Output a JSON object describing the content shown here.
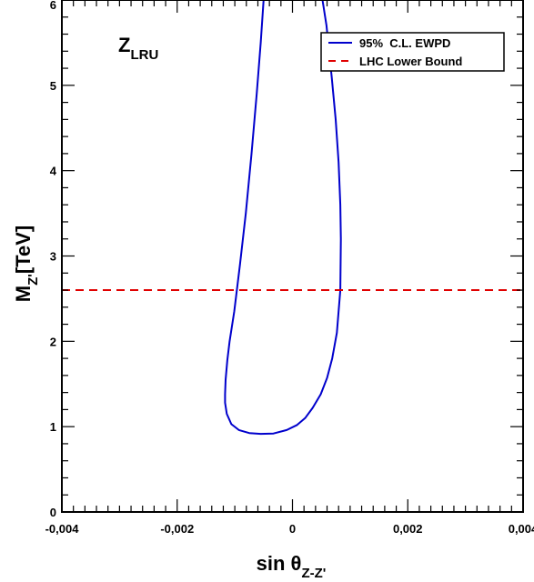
{
  "chart_data": {
    "type": "line",
    "title": "Z",
    "title_subscript": "LRU",
    "xlabel_main": "sin θ",
    "xlabel_subscript": "Z-Z'",
    "ylabel_main": "M",
    "ylabel_subscript": "Z'",
    "ylabel_unit": "[TeV]",
    "xlim": [
      -0.004,
      0.004
    ],
    "ylim": [
      0,
      6
    ],
    "x_ticks": [
      -0.004,
      -0.002,
      0,
      0.002,
      0.004
    ],
    "x_tick_labels": [
      "-0,004",
      "-0,002",
      "0",
      "0,002",
      "0,004"
    ],
    "y_ticks": [
      0,
      1,
      2,
      3,
      4,
      5,
      6
    ],
    "y_tick_labels": [
      "0",
      "1",
      "2",
      "3",
      "4",
      "5",
      "6"
    ],
    "grid": false,
    "legend_position": "top-right",
    "series": [
      {
        "name": "95%  C.L. EWPD",
        "color": "#0000cc",
        "style": "solid",
        "x": [
          -0.00049,
          -0.00055,
          -0.00062,
          -0.00071,
          -0.00081,
          -0.00091,
          -0.00101,
          -0.00109,
          -0.00113,
          -0.00116,
          -0.00117,
          -0.00117,
          -0.00114,
          -0.00106,
          -0.00093,
          -0.00075,
          -0.00055,
          -0.00033,
          -0.0001,
          8e-05,
          0.00022,
          0.00035,
          0.00049,
          0.0006,
          0.00069,
          0.00077,
          0.00083,
          0.00084,
          0.00083,
          0.0008,
          0.00075,
          0.00068,
          0.00059,
          0.00052,
          0.00049
        ],
        "y": [
          6.1,
          5.5,
          4.9,
          4.2,
          3.5,
          2.9,
          2.35,
          2.0,
          1.78,
          1.55,
          1.38,
          1.28,
          1.15,
          1.03,
          0.96,
          0.925,
          0.915,
          0.92,
          0.96,
          1.02,
          1.1,
          1.22,
          1.38,
          1.57,
          1.8,
          2.1,
          2.6,
          3.2,
          3.6,
          4.1,
          4.6,
          5.1,
          5.7,
          6.0,
          6.1
        ]
      },
      {
        "name": "LHC Lower Bound",
        "color": "#e00000",
        "style": "dashed",
        "x": [
          -0.004,
          0.004
        ],
        "y": [
          2.6,
          2.6
        ]
      }
    ]
  }
}
